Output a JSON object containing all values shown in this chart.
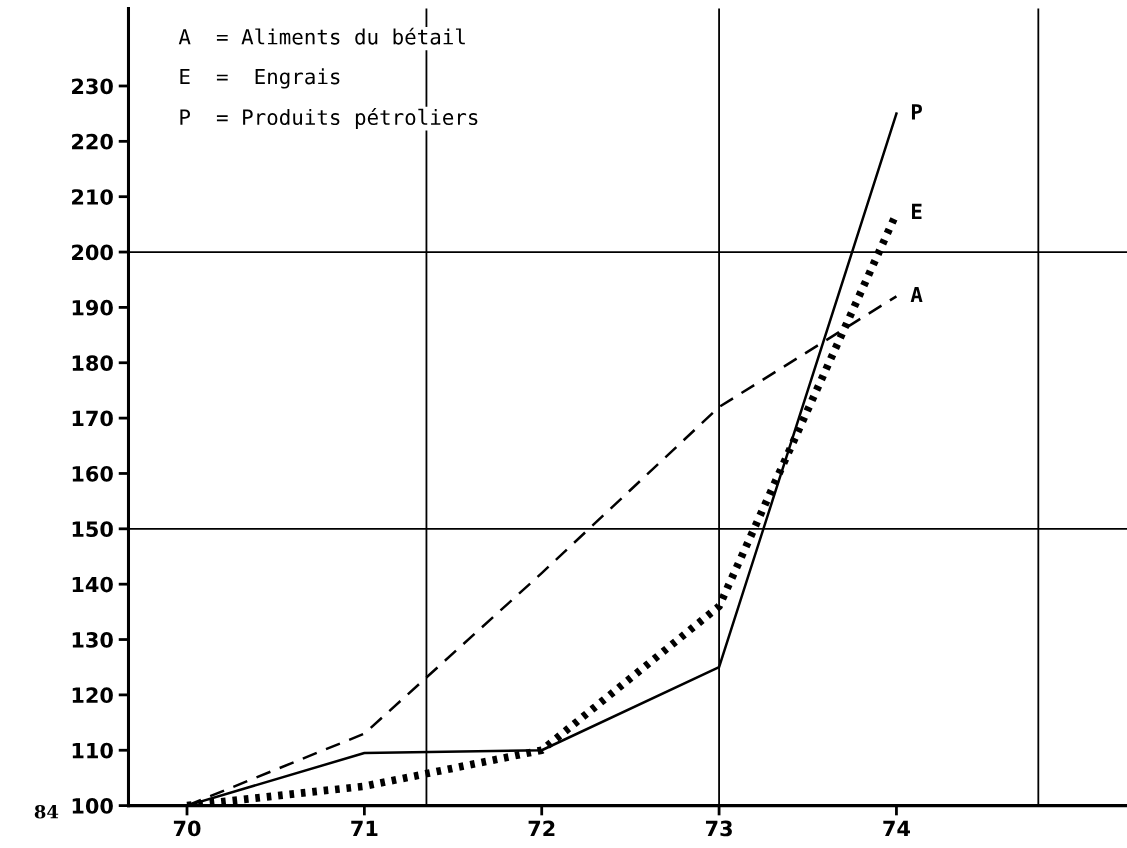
{
  "chart_data": {
    "type": "line",
    "x": [
      70,
      71,
      72,
      73,
      74
    ],
    "series": [
      {
        "name": "A",
        "color": "#000000",
        "line_style": "dashed",
        "values": [
          100,
          113,
          142,
          172,
          192
        ]
      },
      {
        "name": "E",
        "color": "#000000",
        "line_style": "dotted",
        "values": [
          100,
          103.5,
          110,
          136,
          207
        ]
      },
      {
        "name": "P",
        "color": "#000000",
        "line_style": "solid",
        "values": [
          100,
          109.5,
          110,
          125,
          225
        ]
      }
    ],
    "xlim": [
      69.67,
      75.3
    ],
    "ylim": [
      100,
      244
    ],
    "xticks": [
      70,
      71,
      72,
      73,
      74
    ],
    "yticks": [
      100,
      110,
      120,
      130,
      140,
      150,
      160,
      170,
      180,
      190,
      200,
      210,
      220,
      230
    ],
    "ref_lines": [
      {
        "axis": "x",
        "value": 71.35
      },
      {
        "axis": "x",
        "value": 73
      },
      {
        "axis": "x",
        "value": 74.8
      },
      {
        "axis": "y",
        "value": 150
      },
      {
        "axis": "y",
        "value": 200
      }
    ],
    "annotations": [
      "A  = Aliments du bétail",
      "E  =  Engrais",
      "P  = Produits pétroliers",
      "84"
    ],
    "grid": false,
    "legend": false,
    "marker": "none"
  }
}
